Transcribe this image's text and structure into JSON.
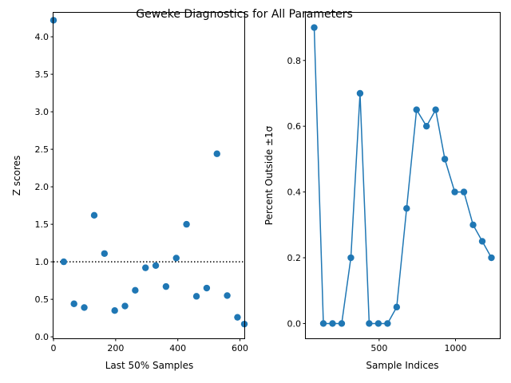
{
  "suptitle": "Geweke Diagnostics for All Parameters",
  "colors": {
    "series": "#1f77b4",
    "axis": "#000000",
    "refline": "#000000"
  },
  "chart_data": [
    {
      "type": "scatter",
      "xlabel": "Last 50% Samples",
      "ylabel": "Z scores",
      "xlim": [
        0,
        614
      ],
      "ylim": [
        -0.02,
        4.32
      ],
      "xticks": [
        0,
        200,
        400,
        600
      ],
      "yticks": [
        0.0,
        0.5,
        1.0,
        1.5,
        2.0,
        2.5,
        3.0,
        3.5,
        4.0
      ],
      "grid": false,
      "reference_line": {
        "y": 1.0,
        "style": "dotted"
      },
      "x": [
        0,
        33,
        66,
        99,
        131,
        164,
        197,
        230,
        263,
        296,
        329,
        362,
        395,
        428,
        460,
        493,
        526,
        559,
        592,
        614
      ],
      "y": [
        4.22,
        1.0,
        0.44,
        0.39,
        1.62,
        1.11,
        0.35,
        0.41,
        0.62,
        0.92,
        0.95,
        0.67,
        1.05,
        1.5,
        0.54,
        0.65,
        2.44,
        0.55,
        0.26,
        0.17
      ]
    },
    {
      "type": "line",
      "markers": true,
      "xlabel": "Sample Indices",
      "ylabel": "Percent Outside ±1σ",
      "xlim": [
        20,
        1290
      ],
      "ylim": [
        -0.045,
        0.945
      ],
      "xticks": [
        500,
        1000
      ],
      "yticks": [
        0.0,
        0.2,
        0.4,
        0.6,
        0.8
      ],
      "grid": false,
      "x": [
        75,
        135,
        195,
        255,
        315,
        375,
        435,
        495,
        555,
        615,
        680,
        745,
        810,
        870,
        930,
        995,
        1055,
        1115,
        1175,
        1235
      ],
      "y": [
        0.9,
        0.0,
        0.0,
        0.0,
        0.2,
        0.7,
        0.0,
        0.0,
        0.0,
        0.05,
        0.35,
        0.65,
        0.6,
        0.65,
        0.5,
        0.4,
        0.4,
        0.3,
        0.25,
        0.2
      ]
    }
  ]
}
